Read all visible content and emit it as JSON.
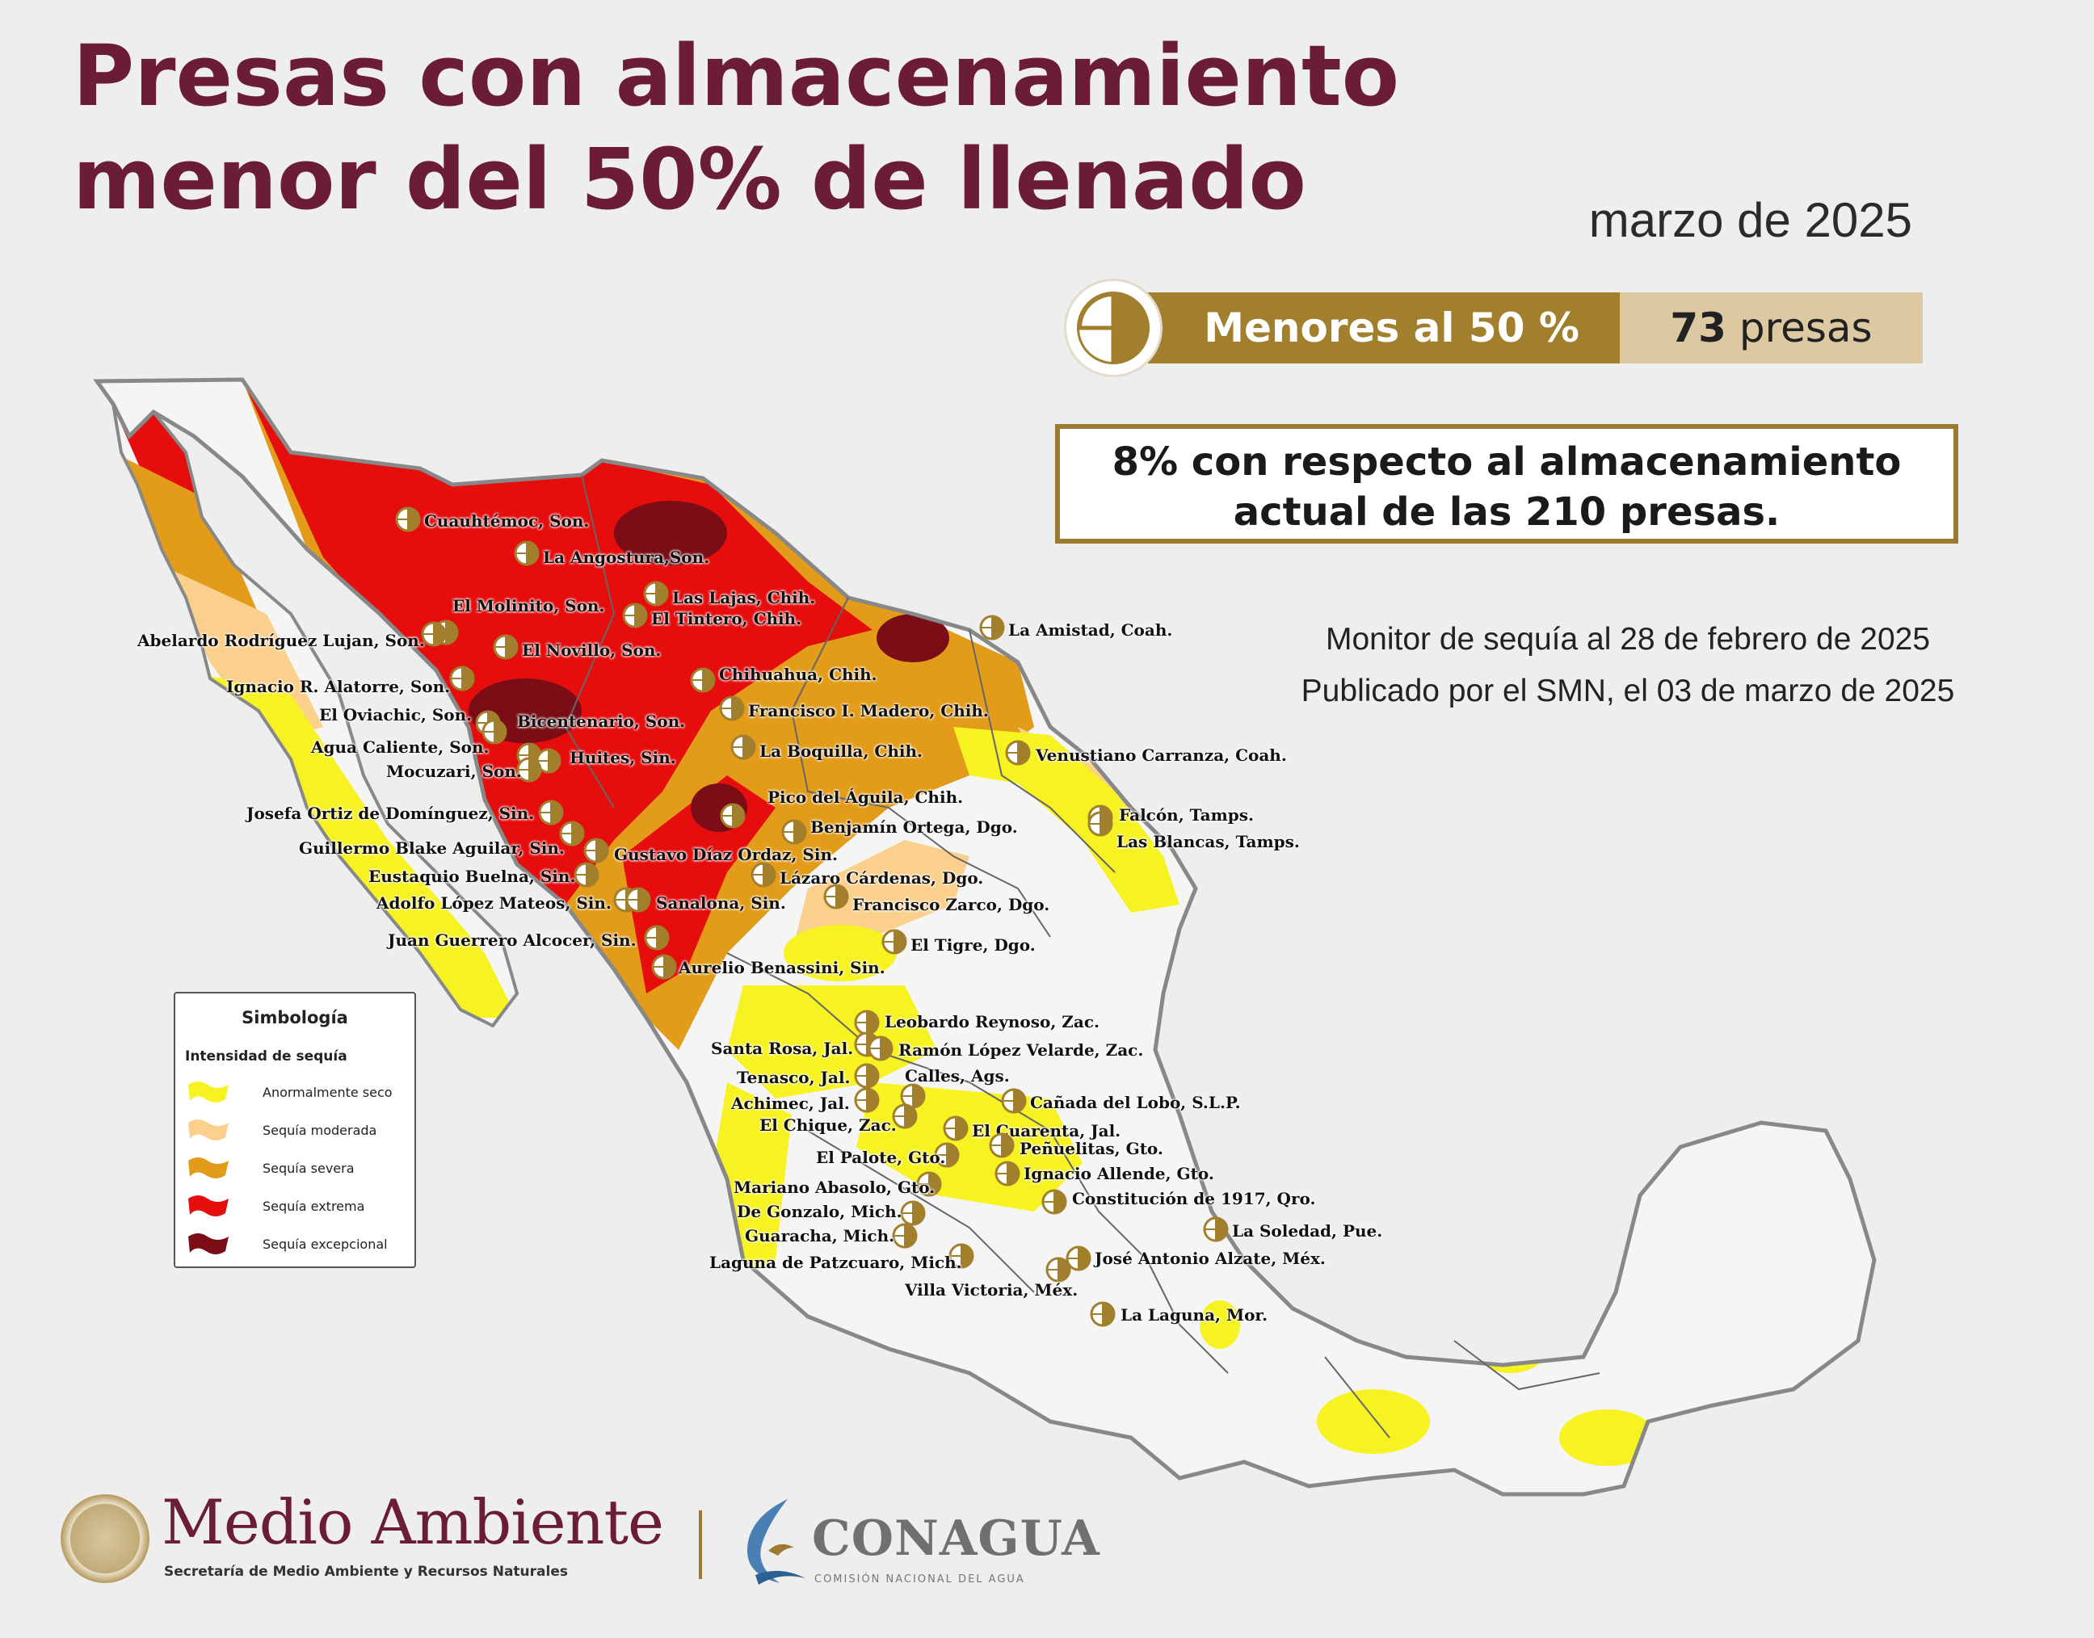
{
  "title_line1": "Presas con almacenamiento",
  "title_line2": "menor del 50% de llenado",
  "date": "marzo de 2025",
  "summary": {
    "label": "Menores al 50 %",
    "count": "73",
    "count_unit": "presas"
  },
  "info_line1": "8% con respecto al almacenamiento",
  "info_line2": "actual de las 210 presas.",
  "monitor_line1": "Monitor de sequía al 28 de febrero de 2025",
  "monitor_line2": "Publicado por el SMN, el 03 de marzo de 2025",
  "legend": {
    "title": "Simbología",
    "subtitle": "Intensidad de sequía",
    "items": [
      {
        "label": "Anormalmente seco",
        "color": "#f7f221"
      },
      {
        "label": "Sequía moderada",
        "color": "#fbd08c"
      },
      {
        "label": "Sequía severa",
        "color": "#e39c19"
      },
      {
        "label": "Sequía extrema",
        "color": "#e60d0d"
      },
      {
        "label": "Sequía excepcional",
        "color": "#7a0d16"
      }
    ]
  },
  "colors": {
    "title": "#6b1d35",
    "gold": "#a27f2d",
    "tan": "#dcc9a2",
    "map_land": "#f5f5f5"
  },
  "dams": [
    "Cuauhtémoc, Son.",
    "La Angostura,Son.",
    "Las Lajas, Chih.",
    "El Tintero, Chih.",
    "El Molinito, Son.",
    "Abelardo Rodríguez Lujan, Son.",
    "El Novillo, Son.",
    "La Amistad, Coah.",
    "Chihuahua, Chih.",
    "Ignacio R. Alatorre, Son.",
    "Francisco I. Madero, Chih.",
    "El Oviachic, Son.",
    "Bicentenario, Son.",
    "Agua Caliente, Son.",
    "La Boquilla, Chih.",
    "Venustiano Carranza, Coah.",
    "Huites, Sin.",
    "Mocuzari, Son.",
    "Pico del Águila, Chih.",
    "Falcón, Tamps.",
    "Josefa Ortiz de Domínguez, Sin.",
    "Benjamín Ortega, Dgo.",
    "Las Blancas, Tamps.",
    "Guillermo Blake Aguilar, Sin.",
    "Gustavo Díaz Ordaz, Sin.",
    "Eustaquio Buelna, Sin.",
    "Lázaro Cárdenas, Dgo.",
    "Adolfo López Mateos, Sin.",
    "Sanalona, Sin.",
    "Francisco Zarco, Dgo.",
    "Juan Guerrero Alcocer, Sin.",
    "El Tigre, Dgo.",
    "Aurelio Benassini, Sin.",
    "Leobardo Reynoso, Zac.",
    "Santa Rosa, Jal.",
    "Ramón López Velarde, Zac.",
    "Tenasco, Jal.",
    "Calles, Ags.",
    "Achimec, Jal.",
    "Cañada del Lobo, S.L.P.",
    "El Chique, Zac.",
    "El Cuarenta, Jal.",
    "Peñuelitas, Gto.",
    "El Palote, Gto.",
    "Ignacio Allende, Gto.",
    "Mariano Abasolo, Gto.",
    "Constitución de 1917, Qro.",
    "De Gonzalo, Mich.",
    "La Soledad, Pue.",
    "Guaracha, Mich.",
    "José Antonio Alzate, Méx.",
    "Laguna de Patzcuaro, Mich.",
    "Villa Victoria, Méx.",
    "La Laguna, Mor."
  ],
  "logos": {
    "ma_name": "Medio Ambiente",
    "ma_sub": "Secretaría de Medio Ambiente y Recursos Naturales",
    "cn_name": "CONAGUA",
    "cn_sub": "COMISIÓN NACIONAL DEL AGUA"
  }
}
